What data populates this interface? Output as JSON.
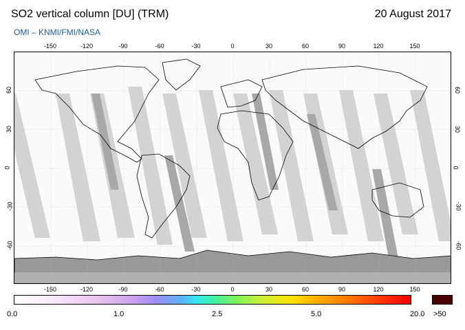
{
  "header": {
    "title": "SO2 vertical column [DU] (TRM)",
    "date": "20 August 2017",
    "credit": "OMI  –  KNMI/FMI/NASA"
  },
  "map": {
    "lon_ticks": [
      "-150",
      "-120",
      "-90",
      "-60",
      "-30",
      "0",
      "30",
      "60",
      "90",
      "120",
      "150"
    ],
    "lat_ticks": [
      "60",
      "30",
      "0",
      "-30",
      "-60"
    ]
  },
  "colorbar": {
    "ticks": [
      "0.0",
      "1.0",
      "2.5",
      "5.0",
      "20.0"
    ],
    "over_label": ">50"
  },
  "colors": {
    "land_outline": "#000000",
    "swath_light": "#d3d3d3",
    "swath_dark": "#a8a8a8",
    "polar_gray": "#999999",
    "over_color": "#4a0000"
  }
}
